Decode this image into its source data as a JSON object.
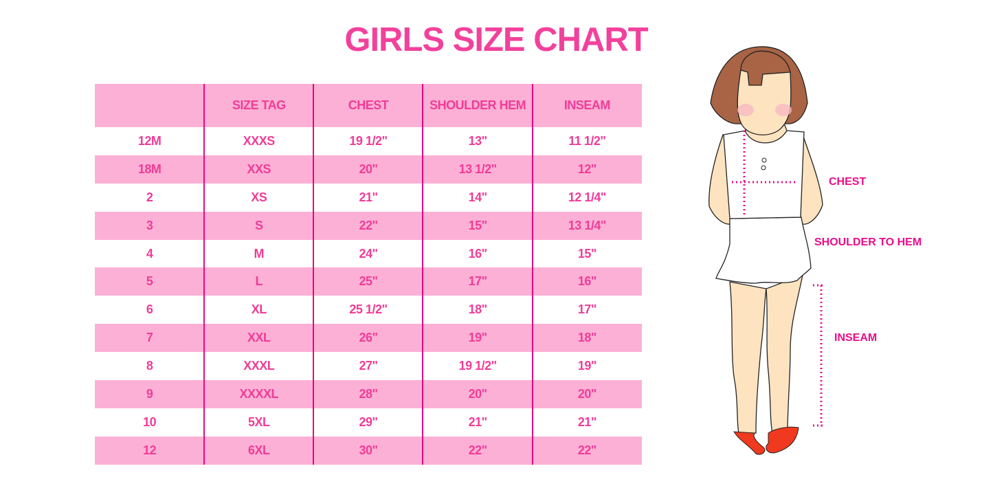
{
  "title": "GIRLS SIZE CHART",
  "table": {
    "headers": [
      "",
      "SIZE TAG",
      "CHEST",
      "SHOULDER HEM",
      "INSEAM"
    ],
    "rows": [
      [
        "12M",
        "XXXS",
        "19 1/2\"",
        "13\"",
        "11 1/2\""
      ],
      [
        "18M",
        "XXS",
        "20\"",
        "13 1/2\"",
        "12\""
      ],
      [
        "2",
        "XS",
        "21\"",
        "14\"",
        "12 1/4\""
      ],
      [
        "3",
        "S",
        "22\"",
        "15\"",
        "13 1/4\""
      ],
      [
        "4",
        "M",
        "24\"",
        "16\"",
        "15\""
      ],
      [
        "5",
        "L",
        "25\"",
        "17\"",
        "16\""
      ],
      [
        "6",
        "XL",
        "25 1/2\"",
        "18\"",
        "17\""
      ],
      [
        "7",
        "XXL",
        "26\"",
        "19\"",
        "18\""
      ],
      [
        "8",
        "XXXL",
        "27\"",
        "19 1/2\"",
        "19\""
      ],
      [
        "9",
        "XXXXL",
        "28\"",
        "20\"",
        "20\""
      ],
      [
        "10",
        "5XL",
        "29\"",
        "21\"",
        "21\""
      ],
      [
        "12",
        "6XL",
        "30\"",
        "22\"",
        "22\""
      ]
    ]
  },
  "figure": {
    "labels": {
      "chest": "CHEST",
      "shoulder_to_hem": "SHOULDER TO HEM",
      "inseam": "INSEAM"
    }
  },
  "colors": {
    "accent": "#f2419c",
    "row_pink": "#fdb0d6",
    "divider": "#e4097f",
    "measure": "#ec0c8a"
  }
}
